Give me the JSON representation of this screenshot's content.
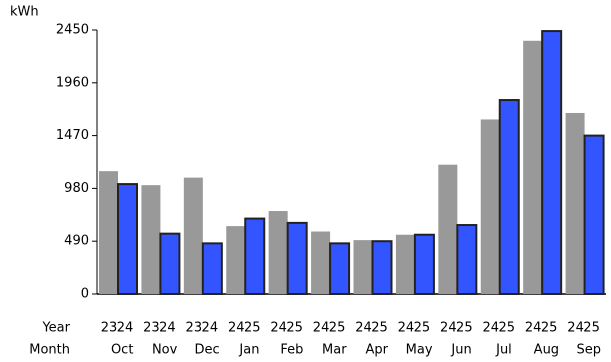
{
  "chart_data": {
    "type": "bar",
    "y_unit": "kWh",
    "categories": [
      "Oct",
      "Nov",
      "Dec",
      "Jan",
      "Feb",
      "Mar",
      "Apr",
      "May",
      "Jun",
      "Jul",
      "Aug",
      "Sep"
    ],
    "row_labels": {
      "year": "Year",
      "month": "Month"
    },
    "series": [
      {
        "color": "#999999",
        "year_labels": [
          "23",
          "23",
          "23",
          "24",
          "24",
          "24",
          "24",
          "24",
          "24",
          "24",
          "24",
          "24"
        ],
        "values": [
          1140,
          1010,
          1080,
          630,
          770,
          580,
          500,
          550,
          1200,
          1620,
          2350,
          1680
        ]
      },
      {
        "color": "#3355ff",
        "year_labels": [
          "24",
          "24",
          "24",
          "25",
          "25",
          "25",
          "25",
          "25",
          "25",
          "25",
          "25",
          "25"
        ],
        "values": [
          1020,
          560,
          470,
          700,
          660,
          470,
          490,
          550,
          640,
          1800,
          2440,
          1470
        ]
      }
    ],
    "ylim": [
      0,
      2450
    ],
    "yticks": [
      0,
      490,
      980,
      1470,
      1960,
      2450
    ]
  }
}
